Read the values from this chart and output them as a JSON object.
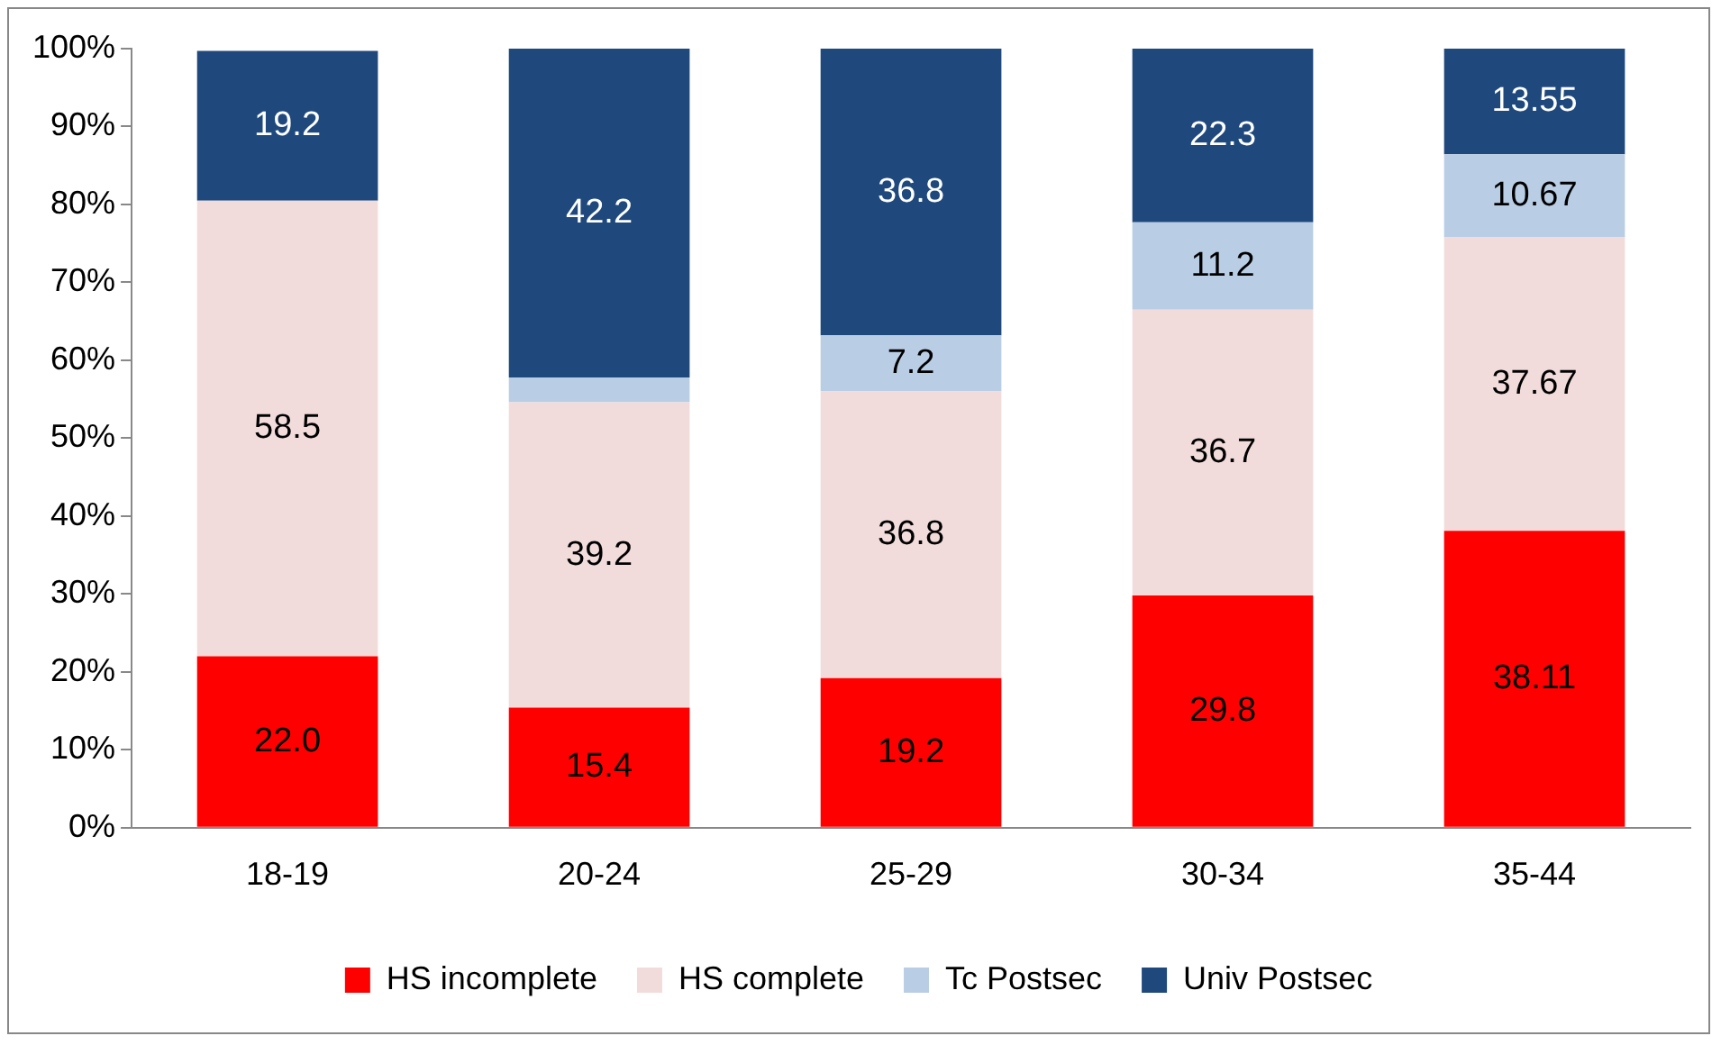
{
  "chart_data": {
    "type": "bar",
    "stacked": true,
    "categories": [
      "18-19",
      "20-24",
      "25-29",
      "30-34",
      "35-44"
    ],
    "series": [
      {
        "name": "HS incomplete",
        "color": "#ff0000",
        "values": [
          22.0,
          15.4,
          19.2,
          29.8,
          38.11
        ],
        "value_labels": [
          "22.0",
          "15.4",
          "19.2",
          "29.8",
          "38.11"
        ]
      },
      {
        "name": "HS complete",
        "color": "#f2dcdb",
        "values": [
          58.5,
          39.2,
          36.8,
          36.7,
          37.67
        ],
        "value_labels": [
          "58.5",
          "39.2",
          "36.8",
          "36.7",
          "37.67"
        ]
      },
      {
        "name": "Tc Postsec",
        "color": "#b9cde5",
        "values": [
          null,
          3.2,
          7.2,
          11.2,
          10.67
        ],
        "value_labels": [
          null,
          null,
          "7.2",
          "11.2",
          "10.67"
        ]
      },
      {
        "name": "Univ Postsec",
        "color": "#1f497d",
        "values": [
          19.2,
          42.2,
          36.8,
          22.3,
          13.55
        ],
        "value_labels": [
          "19.2",
          "42.2",
          "36.8",
          "22.3",
          "13.55"
        ]
      }
    ],
    "ylim": [
      0,
      100
    ],
    "yticks": [
      {
        "value": 0,
        "label": "0%"
      },
      {
        "value": 10,
        "label": "10%"
      },
      {
        "value": 20,
        "label": "20%"
      },
      {
        "value": 30,
        "label": "30%"
      },
      {
        "value": 40,
        "label": "40%"
      },
      {
        "value": 50,
        "label": "50%"
      },
      {
        "value": 60,
        "label": "60%"
      },
      {
        "value": 70,
        "label": "70%"
      },
      {
        "value": 80,
        "label": "80%"
      },
      {
        "value": 90,
        "label": "90%"
      },
      {
        "value": 100,
        "label": "100%"
      }
    ],
    "grid": false,
    "legend": "bottom"
  }
}
